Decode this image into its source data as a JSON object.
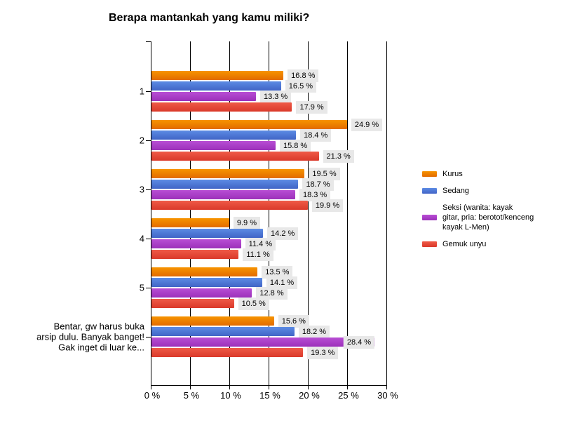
{
  "title": "Berapa mantankah yang kamu miliki?",
  "chart_data": {
    "type": "bar",
    "orientation": "horizontal",
    "title": "Berapa mantankah yang kamu miliki?",
    "categories": [
      "1",
      "2",
      "3",
      "4",
      "5",
      "Bentar, gw harus buka arsip dulu. Banyak banget! Gak inget di luar ke..."
    ],
    "category_lines": [
      [
        "1"
      ],
      [
        "2"
      ],
      [
        "3"
      ],
      [
        "4"
      ],
      [
        "5"
      ],
      [
        "Bentar, gw harus buka",
        "arsip dulu. Banyak banget!",
        "Gak inget di luar ke..."
      ]
    ],
    "series": [
      {
        "name": "Kurus",
        "legend_lines": [
          "Kurus"
        ],
        "color_top": "#f79400",
        "color_bottom": "#e26b00",
        "values": [
          16.8,
          24.9,
          19.5,
          9.9,
          13.5,
          15.6
        ]
      },
      {
        "name": "Sedang",
        "legend_lines": [
          "Sedang"
        ],
        "color_top": "#5c8be4",
        "color_bottom": "#4164c6",
        "values": [
          16.5,
          18.4,
          18.7,
          14.2,
          14.1,
          18.2
        ]
      },
      {
        "name": "Seksi (wanita: kayak gitar, pria: berotot/kenceng kayak L-Men)",
        "legend_lines": [
          "Seksi (wanita: kayak",
          "gitar, pria: berotot/kenceng",
          "kayak L-Men)"
        ],
        "color_top": "#b84dd4",
        "color_bottom": "#9c31ba",
        "values": [
          13.3,
          15.8,
          18.3,
          11.4,
          12.8,
          28.4
        ]
      },
      {
        "name": "Gemuk unyu",
        "legend_lines": [
          "Gemuk unyu"
        ],
        "color_top": "#ef5a47",
        "color_bottom": "#da392a",
        "values": [
          17.9,
          21.3,
          19.9,
          11.1,
          10.5,
          19.3
        ]
      }
    ],
    "value_suffix": " %",
    "xlabel": "",
    "ylabel": "",
    "xlim": [
      0,
      30
    ],
    "xticks": [
      0,
      5,
      10,
      15,
      20,
      25,
      30
    ],
    "xtick_labels": [
      "0 %",
      "5 %",
      "10 %",
      "15 %",
      "20 %",
      "25 %",
      "30 %"
    ],
    "grid": "vertical-black-lines",
    "legend_position": "right",
    "label_background": "#e8e8e8"
  }
}
